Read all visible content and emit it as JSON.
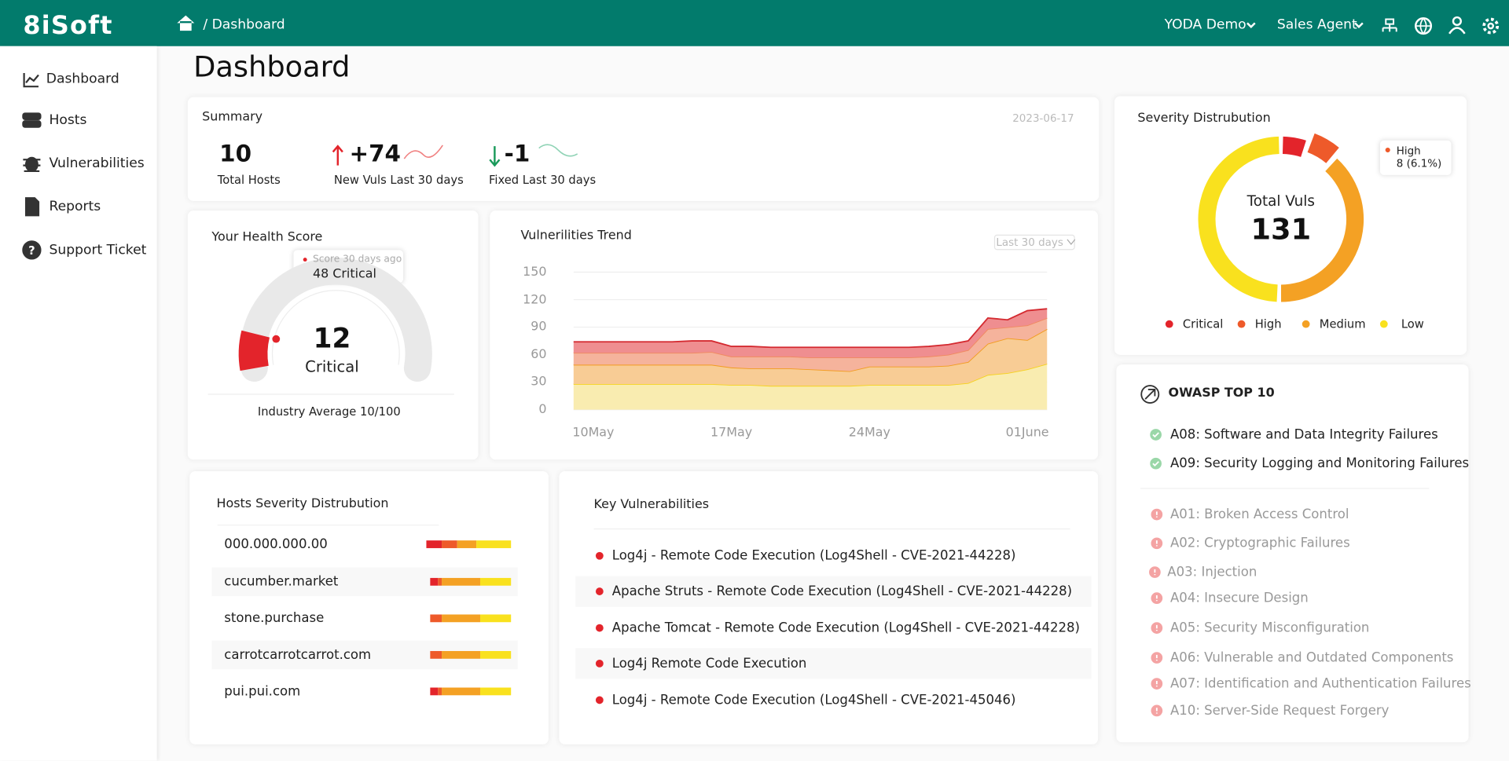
{
  "header": {
    "logo": "8iSoft",
    "breadcrumb": "/ Dashboard",
    "account": "YODA Demo",
    "role": "Sales Agent"
  },
  "sidebar": [
    "Dashboard",
    "Hosts",
    "Vulnerabilities",
    "Reports",
    "Support Ticket"
  ],
  "page_title": "Dashboard",
  "summary": {
    "title": "Summary",
    "date": "2023-06-17",
    "stats": [
      {
        "value": "10",
        "label": "Total Hosts"
      },
      {
        "value": "+74",
        "label": "New Vuls Last 30 days"
      },
      {
        "value": "-1",
        "label": "Fixed Last 30 days"
      }
    ]
  },
  "health_score": {
    "title": "Your Health Score",
    "tooltip_title": "Score 30 days ago",
    "tooltip_value": "48 Critical",
    "score": 12,
    "range": [
      0,
      100
    ],
    "rating": "Critical",
    "footer": "Industry Average 10/100"
  },
  "chart_data": [
    {
      "type": "area",
      "title": "Vulnerilities Trend",
      "period": "Last 30 days",
      "categories": [
        null,
        "10May",
        null,
        null,
        null,
        null,
        null,
        null,
        "17May",
        null,
        null,
        null,
        null,
        null,
        null,
        "24May",
        null,
        null,
        null,
        null,
        null,
        null,
        null,
        "01June",
        null
      ],
      "series": [
        {
          "color": "#f6d21e",
          "fill": "#f9ecb0",
          "values": [
            28,
            28,
            28,
            28,
            28,
            28,
            28,
            28,
            27,
            27,
            26,
            26,
            26,
            26,
            26,
            27,
            27,
            27,
            27,
            27,
            29,
            38,
            40,
            44,
            50
          ]
        },
        {
          "color": "#f29c20",
          "fill": "#f8cc95",
          "values": [
            21,
            21,
            21,
            21,
            21,
            21,
            21,
            21,
            19,
            18,
            19,
            19,
            18,
            17,
            16,
            20,
            20,
            20,
            20,
            21,
            23,
            34,
            38,
            32,
            38
          ]
        },
        {
          "color": "#f08a5f",
          "fill": "#f5b39c",
          "values": [
            13,
            13,
            13,
            13,
            13,
            13,
            13,
            14,
            12,
            13,
            13,
            13,
            13,
            14,
            15,
            10,
            10,
            10,
            11,
            12,
            13,
            16,
            12,
            16,
            12
          ]
        },
        {
          "color": "#d42a30",
          "fill": "#ef8e90",
          "values": [
            12,
            12,
            12,
            12,
            12,
            12,
            13,
            12,
            11,
            11,
            10,
            10,
            11,
            11,
            11,
            11,
            11,
            11,
            11,
            11,
            10,
            12,
            8,
            16,
            10
          ]
        }
      ],
      "ylim": [
        0,
        150
      ],
      "yticks": [
        0,
        30,
        60,
        90,
        120,
        150
      ],
      "grid": true
    },
    {
      "type": "donut",
      "title": "Severity Distrubution",
      "center_label": "Total Vuls",
      "total": 131,
      "categories": [
        "Critical",
        "High",
        "Medium",
        "Low"
      ],
      "values": [
        7,
        8,
        51,
        65
      ],
      "colors": [
        "#e3242b",
        "#ee5a2a",
        "#f4a124",
        "#f9e11e"
      ],
      "tooltip": {
        "category": "High",
        "label": "8 (6.1%)"
      },
      "legend": "bottom"
    }
  ],
  "hosts": {
    "title": "Hosts Severity Distrubution",
    "colors": [
      "#e3242b",
      "#ee5a2a",
      "#f4a124",
      "#f9e11e"
    ],
    "rows": [
      {
        "name": "000.000.000.00",
        "values": [
          4,
          4,
          5,
          9
        ]
      },
      {
        "name": "cucumber.market",
        "values": [
          2,
          1,
          10,
          8
        ]
      },
      {
        "name": "stone.purchase",
        "values": [
          0,
          3,
          10,
          8
        ]
      },
      {
        "name": "carrotcarrotcarrot.com",
        "values": [
          0,
          3,
          10,
          8
        ]
      },
      {
        "name": "pui.pui.com",
        "values": [
          2,
          1,
          10,
          8
        ]
      }
    ]
  },
  "key_vulnerabilities": {
    "title": "Key  Vulnerabilities",
    "items": [
      "Log4j - Remote Code Execution (Log4Shell - CVE-2021-44228)",
      "Apache Struts - Remote Code Execution (Log4Shell - CVE-2021-44228)",
      "Apache Tomcat - Remote Code Execution (Log4Shell - CVE-2021-44228)",
      "Log4j Remote Code Execution",
      "Log4j - Remote Code Execution (Log4Shell - CVE-2021-45046)"
    ]
  },
  "owasp": {
    "title": "OWASP TOP 10",
    "passed": [
      "A08: Software and Data Integrity Failures",
      "A09: Security Logging and Monitoring Failures"
    ],
    "failed": [
      "A01: Broken Access Control",
      "A02: Cryptographic Failures",
      "A03: Injection",
      "A04: Insecure Design",
      "A05: Security Misconfiguration",
      "A06: Vulnerable and Outdated Components",
      "A07: Identification and Authentication Failures",
      "A10: Server-Side Request Forgery"
    ]
  }
}
